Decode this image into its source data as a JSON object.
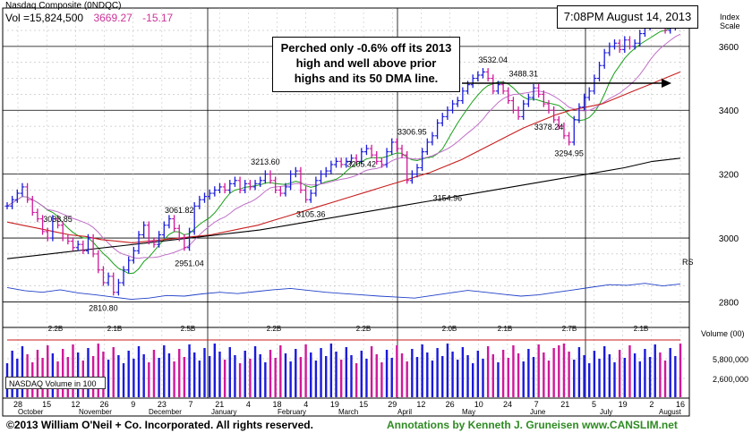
{
  "header": {
    "index_name": "Nasdaq Composite  (0NDQC)",
    "volume_label": "Vol =15,824,500",
    "last_price": "3669.27",
    "change": "-15.17"
  },
  "annotations": {
    "timestamp": "7:08PM August 14, 2013",
    "note_lines": [
      "Perched only -0.6% off its 2013",
      "high and well above prior",
      "highs and its 50 DMA line."
    ]
  },
  "volume_panel": {
    "legend": "NASDAQ Volume in 100",
    "title": "Volume (00)"
  },
  "footer": {
    "copyright": "©2013 William O'Neil + Co. Incorporated. All rights reserved.",
    "credit": "Annotations by Kenneth J. Gruneisen www.CANSLIM.net"
  },
  "colors": {
    "up": "#1a1adb",
    "down": "#d0189a",
    "ma50": "#c81e1e",
    "ma200": "#000000",
    "ma10": "#18a018",
    "ma21": "#c070c8",
    "rs": "#2040c8",
    "annotation": "#2e8b22"
  },
  "chart_data": [
    {
      "type": "candlestick",
      "title": "Nasdaq Composite  (0NDQC)",
      "y_axis_label": "Index Scale",
      "y_ticks": [
        2800,
        3000,
        3200,
        3400,
        3600
      ],
      "ylim": [
        2720,
        3720
      ],
      "x_ticks": [
        "28",
        "15",
        "12",
        "26",
        "9",
        "23",
        "7",
        "21",
        "4",
        "18",
        "4",
        "19",
        "15",
        "29",
        "12",
        "26",
        "10",
        "24",
        "7",
        "21",
        "5",
        "19",
        "2",
        "16"
      ],
      "months": [
        "October",
        "November",
        "December",
        "January",
        "February",
        "March",
        "April",
        "May",
        "June",
        "July",
        "August"
      ],
      "price_labels": [
        {
          "text": "3033.85",
          "value": 3033.85
        },
        {
          "text": "2810.80",
          "value": 2810.8
        },
        {
          "text": "3061.82",
          "value": 3061.82
        },
        {
          "text": "2951.04",
          "value": 2951.04
        },
        {
          "text": "3213.60",
          "value": 3213.6
        },
        {
          "text": "3105.36",
          "value": 3105.36
        },
        {
          "text": "3205.42",
          "value": 3205.42
        },
        {
          "text": "3306.95",
          "value": 3306.95
        },
        {
          "text": "3154.96",
          "value": 3154.96
        },
        {
          "text": "3532.04",
          "value": 3532.04
        },
        {
          "text": "3488.31",
          "value": 3488.31
        },
        {
          "text": "3378.24",
          "value": 3378.24
        },
        {
          "text": "3294.95",
          "value": 3294.95
        }
      ],
      "series": [
        {
          "name": "Price",
          "kind": "ohlc",
          "values": [
            3100,
            3120,
            3140,
            3160,
            3120,
            3080,
            3060,
            3020,
            3000,
            3060,
            3040,
            3000,
            2990,
            2970,
            2980,
            2960,
            3000,
            2950,
            2900,
            2860,
            2880,
            2830,
            2860,
            2900,
            2930,
            2960,
            3010,
            3040,
            2990,
            2980,
            3010,
            3040,
            3060,
            3030,
            3000,
            2970,
            3020,
            3100,
            3120,
            3130,
            3140,
            3150,
            3160,
            3150,
            3170,
            3180,
            3150,
            3170,
            3160,
            3170,
            3180,
            3200,
            3180,
            3150,
            3140,
            3160,
            3200,
            3210,
            3150,
            3120,
            3140,
            3180,
            3200,
            3210,
            3230,
            3240,
            3230,
            3240,
            3250,
            3240,
            3270,
            3280,
            3260,
            3240,
            3230,
            3270,
            3300,
            3280,
            3260,
            3180,
            3200,
            3220,
            3270,
            3300,
            3320,
            3360,
            3380,
            3400,
            3420,
            3430,
            3460,
            3480,
            3500,
            3510,
            3520,
            3500,
            3460,
            3480,
            3460,
            3430,
            3400,
            3380,
            3420,
            3440,
            3470,
            3450,
            3420,
            3400,
            3370,
            3350,
            3320,
            3300,
            3370,
            3410,
            3440,
            3460,
            3500,
            3540,
            3580,
            3600,
            3610,
            3590,
            3620,
            3600,
            3610,
            3640,
            3660,
            3680,
            3690,
            3670,
            3650,
            3660,
            3680,
            3670
          ]
        },
        {
          "name": "50 DMA",
          "values": [
            3050,
            3040,
            3030,
            3020,
            3010,
            3005,
            2995,
            2990,
            2985,
            2990,
            2995,
            3000,
            3005,
            3010,
            3020,
            3030,
            3040,
            3055,
            3070,
            3085,
            3100,
            3115,
            3130,
            3145,
            3160,
            3175,
            3190,
            3205,
            3225,
            3245,
            3270,
            3295,
            3320,
            3345,
            3365,
            3385,
            3400,
            3410,
            3420,
            3440,
            3460,
            3480,
            3500,
            3520
          ]
        },
        {
          "name": "200 DMA",
          "values": [
            2935,
            2945,
            2955,
            2965,
            2975,
            2985,
            2995,
            3005,
            3015,
            3025,
            3040,
            3055,
            3070,
            3085,
            3100,
            3115,
            3130,
            3145,
            3160,
            3175,
            3190,
            3205,
            3220,
            3240,
            3250
          ]
        },
        {
          "name": "RS",
          "values": [
            2845,
            2835,
            2830,
            2838,
            2828,
            2822,
            2815,
            2808,
            2812,
            2820,
            2818,
            2825,
            2830,
            2826,
            2832,
            2838,
            2842,
            2836,
            2830,
            2826,
            2822,
            2818,
            2815,
            2812,
            2820,
            2828,
            2836,
            2830,
            2824,
            2818,
            2822,
            2830,
            2838,
            2846,
            2854,
            2852,
            2858,
            2850,
            2856
          ]
        }
      ]
    },
    {
      "type": "bar",
      "title": "Volume (00)",
      "y_ticks": [
        "5,800,000",
        "2,600,000"
      ],
      "volume_labels": [
        "2.2B",
        "2.1B",
        "2.5B",
        "2.2B",
        "2.2B",
        "2.0B",
        "2.1B",
        "2.7B",
        "2.1B"
      ]
    }
  ]
}
